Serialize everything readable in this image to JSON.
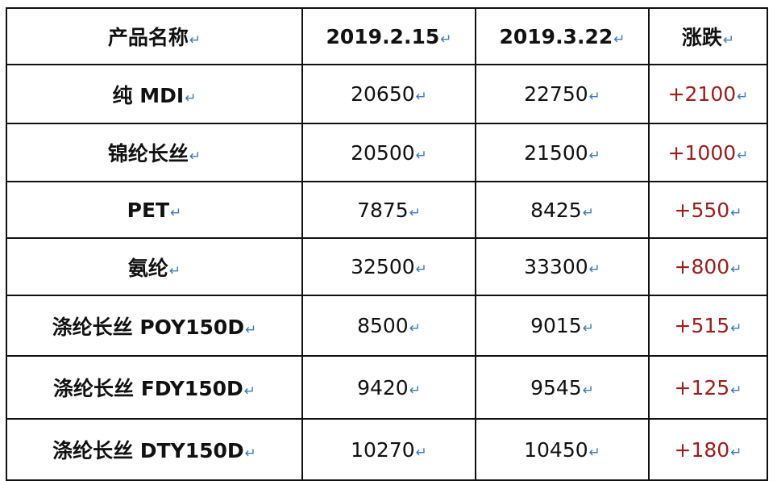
{
  "colors": {
    "change": "#a01c1c",
    "return_mark": "#3a7ac0"
  },
  "return_mark": "↵",
  "header": {
    "name": "产品名称",
    "date1": "2019.2.15",
    "date2": "2019.3.22",
    "change": "涨跌"
  },
  "rows": [
    {
      "name": "纯 MDI",
      "v1": "20650",
      "v2": "22750",
      "change": "+2100"
    },
    {
      "name": "锦纶长丝",
      "v1": "20500",
      "v2": "21500",
      "change": "+1000"
    },
    {
      "name": "PET",
      "v1": "7875",
      "v2": "8425",
      "change": "+550"
    },
    {
      "name": "氨纶",
      "v1": "32500",
      "v2": "33300",
      "change": "+800"
    },
    {
      "name": "涤纶长丝 POY150D",
      "v1": "8500",
      "v2": "9015",
      "change": "+515"
    },
    {
      "name": "涤纶长丝 FDY150D",
      "v1": "9420",
      "v2": "9545",
      "change": "+125"
    },
    {
      "name": "涤纶长丝 DTY150D",
      "v1": "10270",
      "v2": "10450",
      "change": "+180"
    }
  ]
}
